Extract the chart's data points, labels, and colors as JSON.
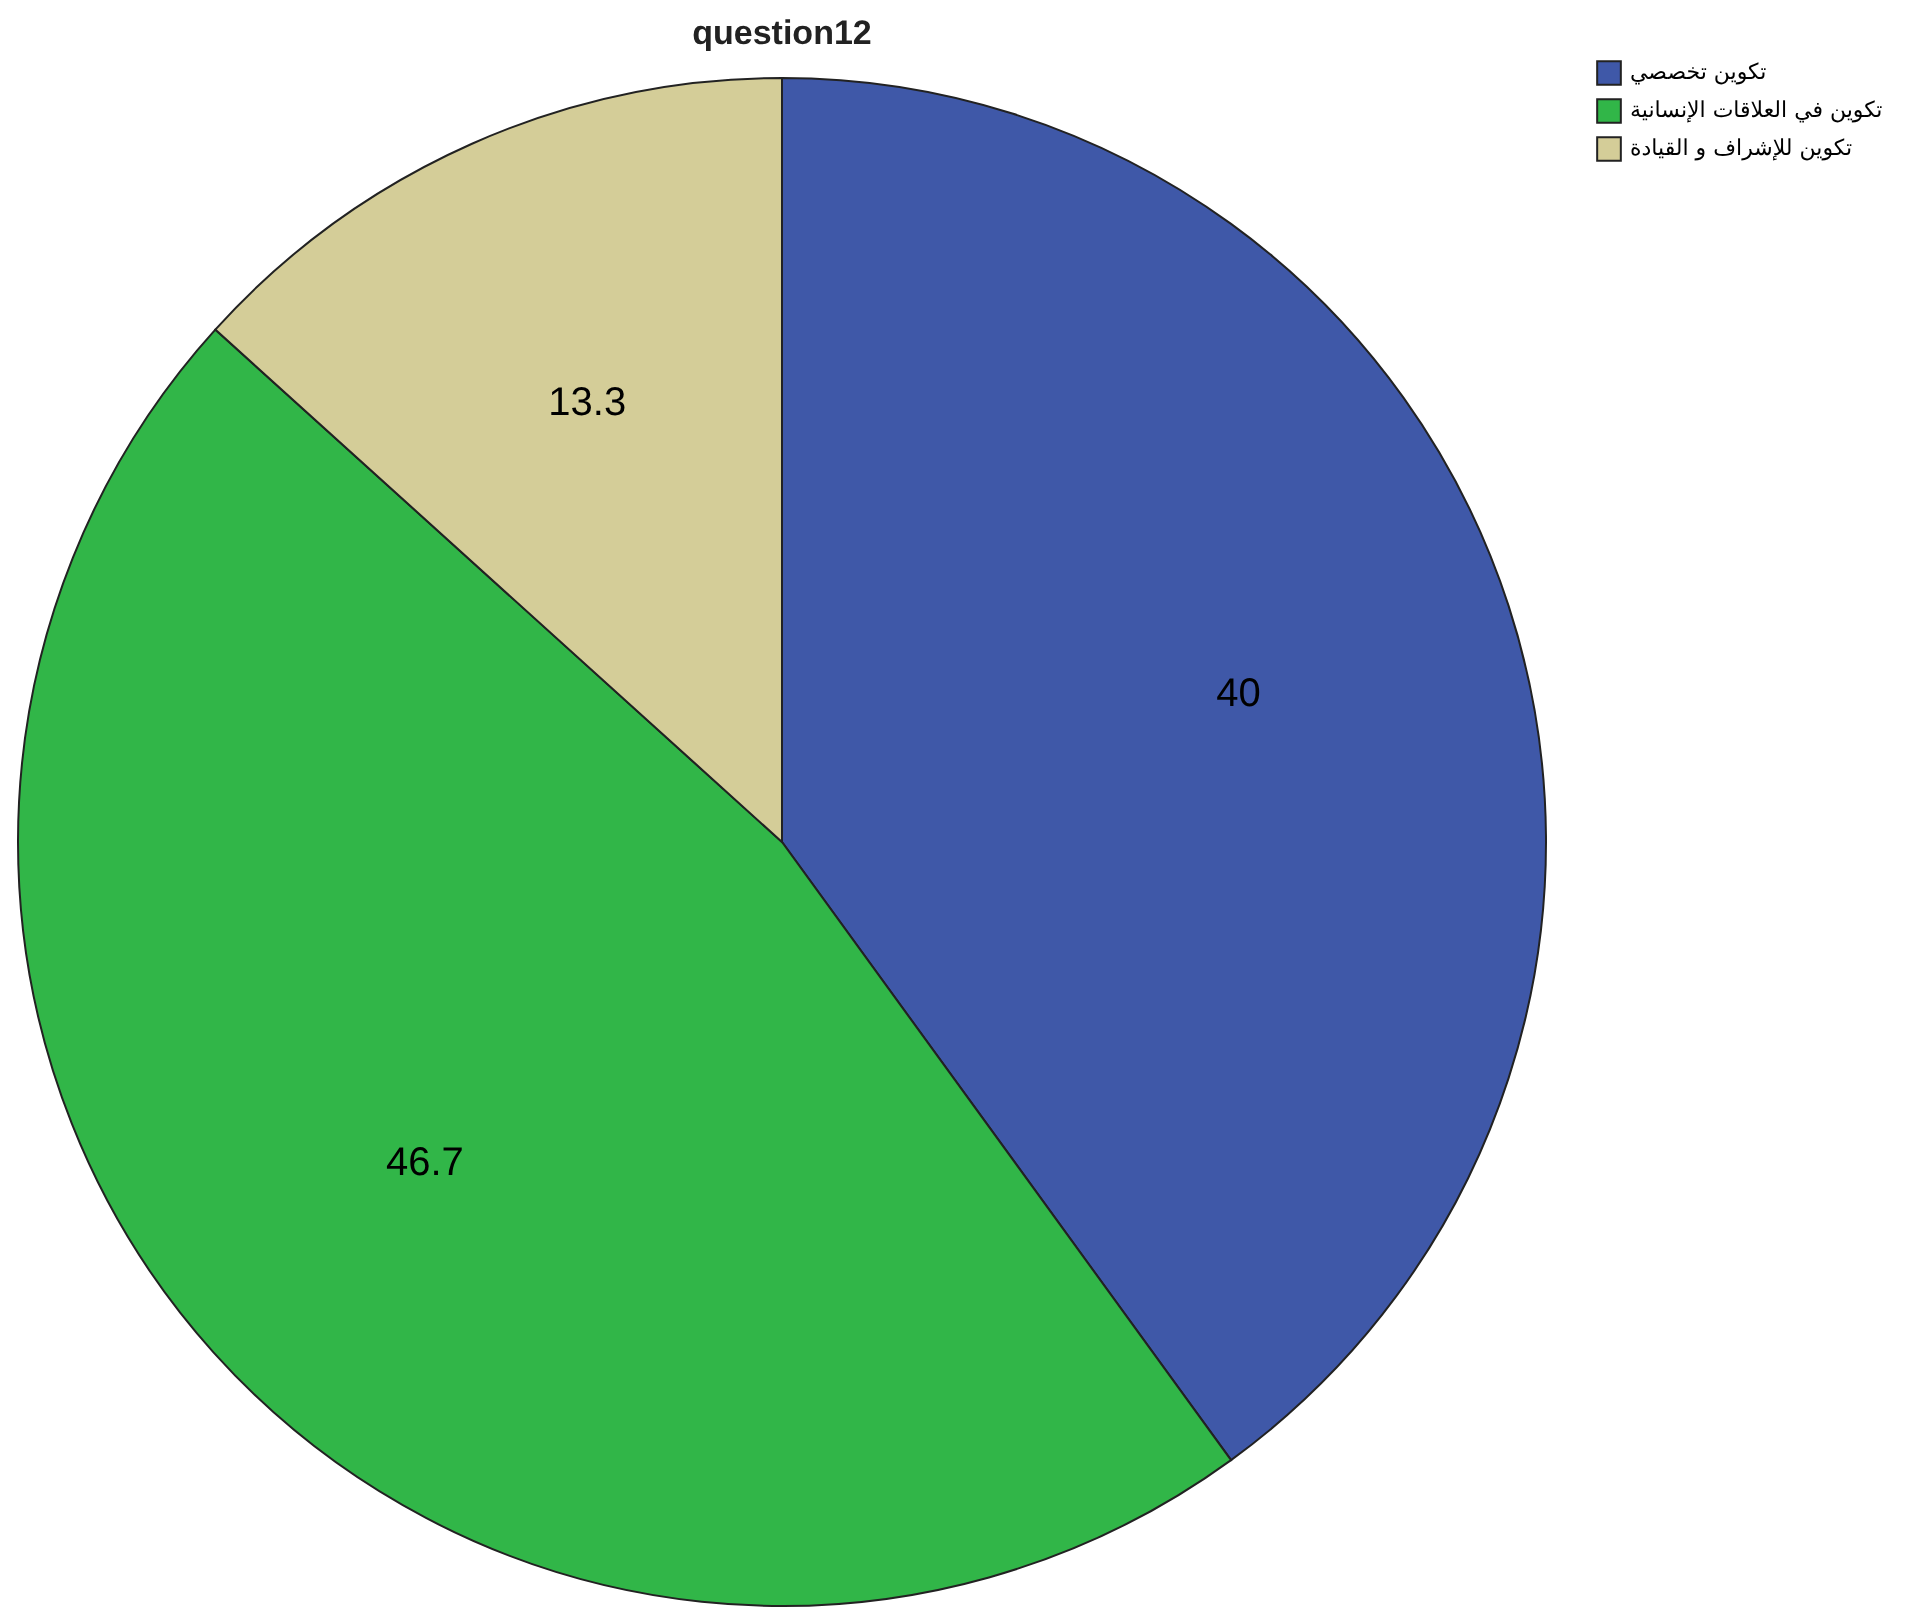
{
  "chart_data": {
    "type": "pie",
    "title": "question12",
    "categories": [
      "تكوين تخصصي",
      "تكوين في العلاقات الإنسانية",
      "تكوين للإشراف و القيادة"
    ],
    "values": [
      40,
      46.7,
      13.3
    ],
    "colors": [
      "#3f58a8",
      "#31b648",
      "#d4cd98"
    ],
    "data_labels": true,
    "legend": "top right"
  }
}
